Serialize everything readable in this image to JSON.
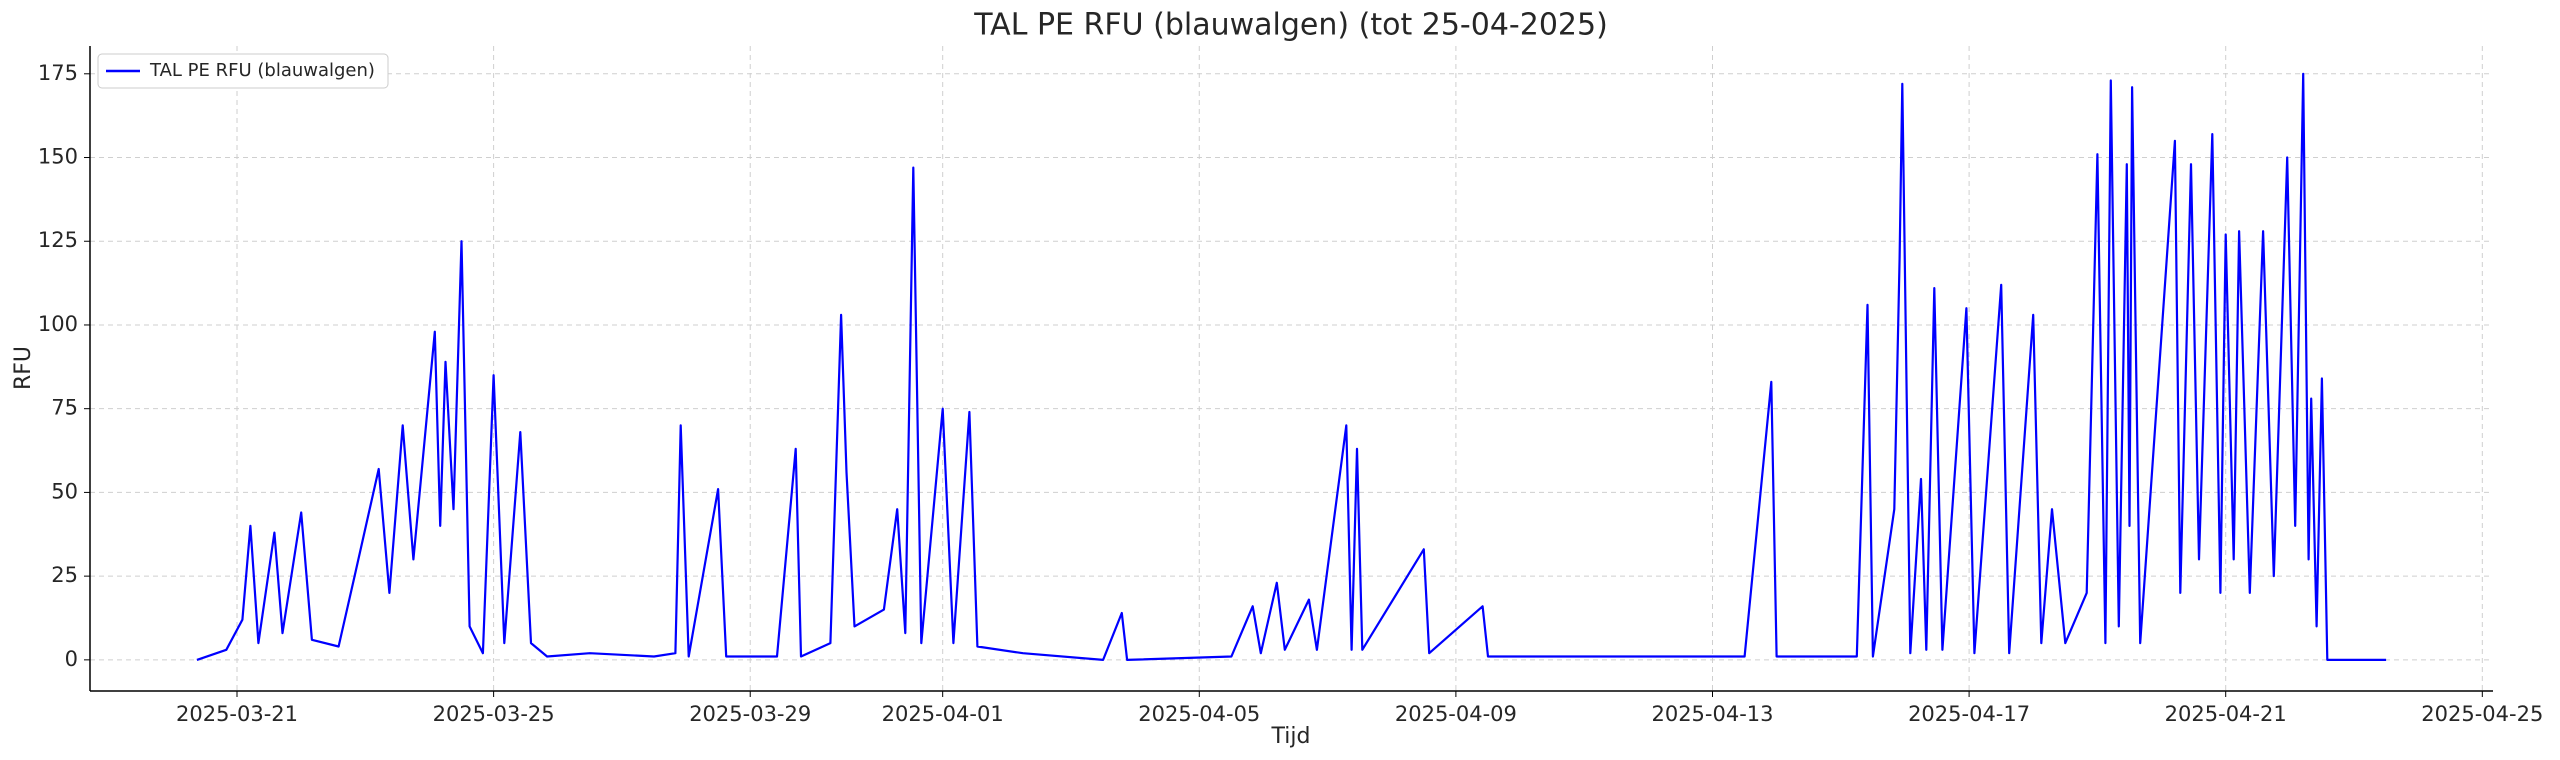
{
  "chart_data": {
    "type": "line",
    "title": "TAL PE RFU (blauwalgen) (tot 25-04-2025)",
    "xlabel": "Tijd",
    "ylabel": "RFU",
    "x": [
      "2025-03-20T09:00",
      "2025-03-20T20:00",
      "2025-03-21T02:00",
      "2025-03-21T05:00",
      "2025-03-21T08:00",
      "2025-03-21T14:00",
      "2025-03-21T17:00",
      "2025-03-22T00:00",
      "2025-03-22T04:00",
      "2025-03-22T14:00",
      "2025-03-22T20:00",
      "2025-03-23T05:00",
      "2025-03-23T09:00",
      "2025-03-23T14:00",
      "2025-03-23T18:00",
      "2025-03-24T02:00",
      "2025-03-24T04:00",
      "2025-03-24T06:00",
      "2025-03-24T09:00",
      "2025-03-24T12:00",
      "2025-03-24T15:00",
      "2025-03-24T20:00",
      "2025-03-25T00:00",
      "2025-03-25T04:00",
      "2025-03-25T10:00",
      "2025-03-25T14:00",
      "2025-03-25T20:00",
      "2025-03-26T12:00",
      "2025-03-27T12:00",
      "2025-03-27T20:00",
      "2025-03-27T22:00",
      "2025-03-28T01:00",
      "2025-03-28T12:00",
      "2025-03-28T15:00",
      "2025-03-29T10:00",
      "2025-03-29T17:00",
      "2025-03-29T19:00",
      "2025-03-30T06:00",
      "2025-03-30T10:00",
      "2025-03-30T12:00",
      "2025-03-30T15:00",
      "2025-03-31T02:00",
      "2025-03-31T07:00",
      "2025-03-31T10:00",
      "2025-03-31T13:00",
      "2025-03-31T16:00",
      "2025-04-01T00:00",
      "2025-04-01T04:00",
      "2025-04-01T10:00",
      "2025-04-01T13:00",
      "2025-04-02T06:00",
      "2025-04-03T12:00",
      "2025-04-03T19:00",
      "2025-04-03T21:00",
      "2025-04-05T12:00",
      "2025-04-05T20:00",
      "2025-04-05T23:00",
      "2025-04-06T05:00",
      "2025-04-06T08:00",
      "2025-04-06T17:00",
      "2025-04-06T20:00",
      "2025-04-07T07:00",
      "2025-04-07T09:00",
      "2025-04-07T11:00",
      "2025-04-07T13:00",
      "2025-04-08T12:00",
      "2025-04-08T14:00",
      "2025-04-09T10:00",
      "2025-04-09T12:00",
      "2025-04-11T12:00",
      "2025-04-13T12:00",
      "2025-04-13T22:00",
      "2025-04-14T00:00",
      "2025-04-15T06:00",
      "2025-04-15T10:00",
      "2025-04-15T12:00",
      "2025-04-15T20:00",
      "2025-04-15T22:00",
      "2025-04-15T23:00",
      "2025-04-16T02:00",
      "2025-04-16T06:00",
      "2025-04-16T08:00",
      "2025-04-16T11:00",
      "2025-04-16T14:00",
      "2025-04-16T23:00",
      "2025-04-17T02:00",
      "2025-04-17T12:00",
      "2025-04-17T15:00",
      "2025-04-18T00:00",
      "2025-04-18T03:00",
      "2025-04-18T07:00",
      "2025-04-18T12:00",
      "2025-04-18T20:00",
      "2025-04-19T00:00",
      "2025-04-19T03:00",
      "2025-04-19T05:00",
      "2025-04-19T08:00",
      "2025-04-19T11:00",
      "2025-04-19T12:00",
      "2025-04-19T13:00",
      "2025-04-19T16:00",
      "2025-04-20T05:00",
      "2025-04-20T07:00",
      "2025-04-20T11:00",
      "2025-04-20T14:00",
      "2025-04-20T19:00",
      "2025-04-20T22:00",
      "2025-04-21T00:00",
      "2025-04-21T03:00",
      "2025-04-21T05:00",
      "2025-04-21T09:00",
      "2025-04-21T14:00",
      "2025-04-21T18:00",
      "2025-04-21T23:00",
      "2025-04-22T02:00",
      "2025-04-22T05:00",
      "2025-04-22T07:00",
      "2025-04-22T08:00",
      "2025-04-22T10:00",
      "2025-04-22T12:00",
      "2025-04-22T14:00",
      "2025-04-23T12:00"
    ],
    "series": [
      {
        "name": "TAL PE RFU (blauwalgen)",
        "color": "#0000ff",
        "values": [
          0,
          3,
          12,
          40,
          5,
          38,
          8,
          44,
          6,
          4,
          25,
          57,
          20,
          70,
          30,
          98,
          40,
          89,
          45,
          125,
          10,
          2,
          85,
          5,
          68,
          5,
          1,
          2,
          1,
          2,
          70,
          1,
          51,
          1,
          1,
          63,
          1,
          5,
          103,
          56,
          10,
          15,
          45,
          8,
          147,
          5,
          75,
          5,
          74,
          4,
          2,
          0,
          14,
          0,
          1,
          16,
          2,
          23,
          3,
          18,
          3,
          70,
          3,
          63,
          3,
          33,
          2,
          16,
          1,
          1,
          1,
          83,
          1,
          1,
          106,
          1,
          45,
          120,
          172,
          2,
          54,
          3,
          111,
          3,
          105,
          2,
          112,
          2,
          103,
          5,
          45,
          5,
          20,
          151,
          5,
          173,
          10,
          148,
          40,
          171,
          5,
          155,
          20,
          148,
          30,
          157,
          20,
          127,
          30,
          128,
          20,
          128,
          25,
          150,
          40,
          175,
          30,
          78,
          10,
          84,
          0,
          0
        ]
      }
    ],
    "xlim": [
      "2025-03-18T17:00",
      "2025-04-25T04:00"
    ],
    "xticks": [
      "2025-03-21",
      "2025-03-25",
      "2025-03-29",
      "2025-04-01",
      "2025-04-05",
      "2025-04-09",
      "2025-04-13",
      "2025-04-17",
      "2025-04-21",
      "2025-04-25"
    ],
    "ylim": [
      -9.3,
      183.3
    ],
    "yticks": [
      0,
      25,
      50,
      75,
      100,
      125,
      150,
      175
    ],
    "grid": true,
    "legend": "upper left"
  }
}
